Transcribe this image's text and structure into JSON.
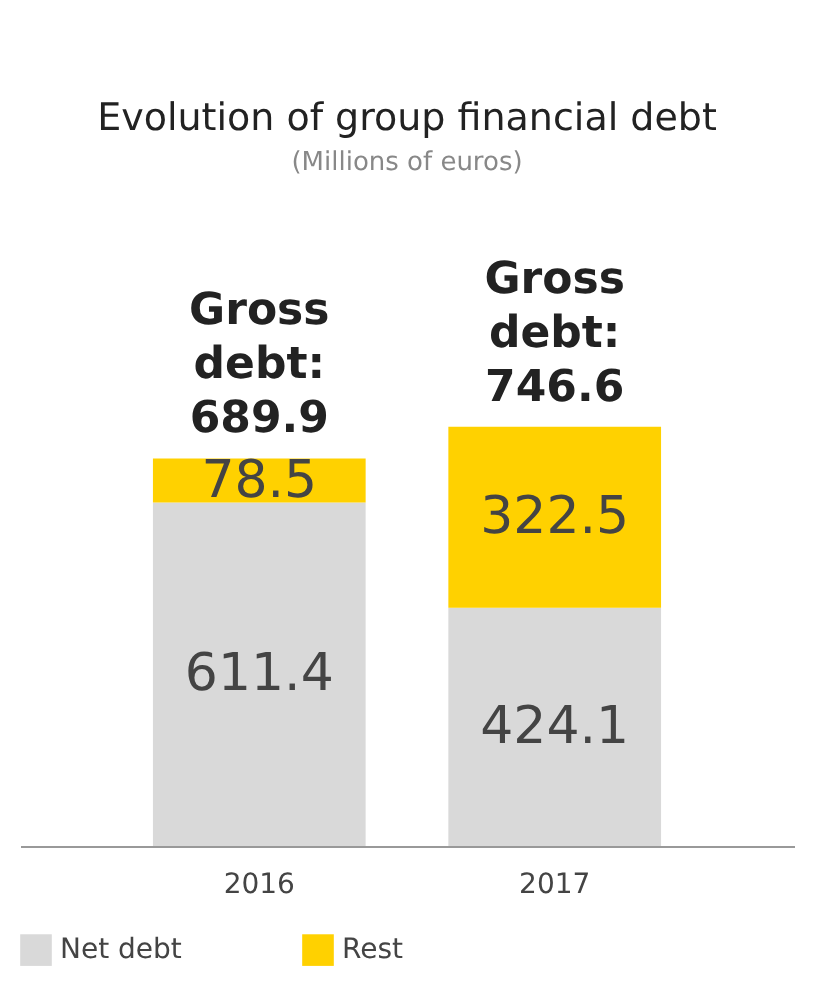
{
  "chart_data": {
    "type": "bar",
    "title": "Evolution of group financial debt",
    "subtitle": "(Millions of euros)",
    "categories": [
      "2016",
      "2017"
    ],
    "stacked": true,
    "series": [
      {
        "name": "Net debt",
        "color": "#d9d9d9",
        "values": [
          611.4,
          424.1
        ]
      },
      {
        "name": "Rest",
        "color": "#ffd100",
        "values": [
          78.5,
          322.5
        ]
      }
    ],
    "data_labels": true,
    "totals": [
      "Gross debt: 689.9",
      "Gross debt: 746.6"
    ],
    "legend": "bottom",
    "grid": false
  }
}
